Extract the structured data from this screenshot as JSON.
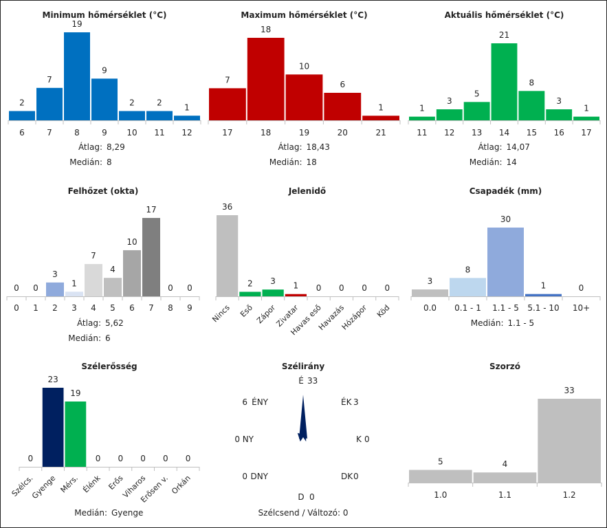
{
  "chart_data": [
    {
      "id": "min",
      "type": "bar",
      "title": "Minimum hőmérséklet (°C)",
      "categories": [
        "6",
        "7",
        "8",
        "9",
        "10",
        "11",
        "12"
      ],
      "values": [
        2,
        7,
        19,
        9,
        2,
        2,
        1
      ],
      "colors": [
        "#0070c0"
      ],
      "stats": [
        {
          "label": "Átlag:",
          "value": "8,29"
        },
        {
          "label": "Medián:",
          "value": "8"
        }
      ]
    },
    {
      "id": "max",
      "type": "bar",
      "title": "Maximum hőmérséklet (°C)",
      "categories": [
        "17",
        "18",
        "19",
        "20",
        "21"
      ],
      "values": [
        7,
        18,
        10,
        6,
        1
      ],
      "colors": [
        "#c00000"
      ],
      "stats": [
        {
          "label": "Átlag:",
          "value": "18,43"
        },
        {
          "label": "Medián:",
          "value": "18"
        }
      ]
    },
    {
      "id": "act",
      "type": "bar",
      "title": "Aktuális hőmérséklet (°C)",
      "categories": [
        "11",
        "12",
        "13",
        "14",
        "15",
        "16",
        "17"
      ],
      "values": [
        1,
        3,
        5,
        21,
        8,
        3,
        1
      ],
      "colors": [
        "#00b050"
      ],
      "stats": [
        {
          "label": "Átlag:",
          "value": "14,07"
        },
        {
          "label": "Medián:",
          "value": "14"
        }
      ]
    },
    {
      "id": "cloud",
      "type": "bar",
      "title": "Felhőzet (okta)",
      "categories": [
        "0",
        "1",
        "2",
        "3",
        "4",
        "5",
        "6",
        "7",
        "8",
        "9"
      ],
      "values": [
        0,
        0,
        3,
        1,
        7,
        4,
        10,
        17,
        0,
        0
      ],
      "colors": [
        "#9dc3e6",
        "#9dc3e6",
        "#8faadc",
        "#dae3f3",
        "#d9d9d9",
        "#bfbfbf",
        "#a6a6a6",
        "#7f7f7f",
        "#7f7f7f",
        "#7f7f7f"
      ],
      "stats": [
        {
          "label": "Átlag:",
          "value": "5,62"
        },
        {
          "label": "Medián:",
          "value": "6"
        }
      ]
    },
    {
      "id": "weather",
      "type": "bar",
      "title": "Jelenidő",
      "categories": [
        "Nincs",
        "Eső",
        "Zápor",
        "Zivatar",
        "Havas eső",
        "Havazás",
        "Hózápor",
        "Köd"
      ],
      "values": [
        36,
        2,
        3,
        1,
        0,
        0,
        0,
        0
      ],
      "colors": [
        "#bfbfbf",
        "#00b050",
        "#00b050",
        "#c00000",
        "#bfbfbf",
        "#bfbfbf",
        "#bfbfbf",
        "#bfbfbf"
      ],
      "rotated_labels": true,
      "stats": []
    },
    {
      "id": "precip",
      "type": "bar",
      "title": "Csapadék (mm)",
      "categories": [
        "0.0",
        "0.1 - 1",
        "1.1 - 5",
        "5.1 - 10",
        "10+"
      ],
      "values": [
        3,
        8,
        30,
        1,
        0
      ],
      "colors": [
        "#bfbfbf",
        "#bdd7ee",
        "#8faadc",
        "#4472c4",
        "#4472c4"
      ],
      "stats": [
        {
          "label": "Medián:",
          "value": "1.1 - 5"
        }
      ]
    },
    {
      "id": "wind",
      "type": "bar",
      "title": "Szélerősség",
      "categories": [
        "Szélcs.",
        "Gyenge",
        "Mérs.",
        "Élénk",
        "Erős",
        "Viharos",
        "Erősen v.",
        "Orkán"
      ],
      "values": [
        0,
        23,
        19,
        0,
        0,
        0,
        0,
        0
      ],
      "colors": [
        "#bfbfbf",
        "#002060",
        "#00b050",
        "#bfbfbf",
        "#bfbfbf",
        "#bfbfbf",
        "#bfbfbf",
        "#bfbfbf"
      ],
      "rotated_labels": true,
      "stats": [
        {
          "label": "Medián:",
          "value": "Gyenge"
        }
      ]
    },
    {
      "id": "dir",
      "type": "windrose",
      "title": "Szélirány",
      "directions": [
        {
          "label": "É",
          "value": 33
        },
        {
          "label": "ÉK",
          "value": 3
        },
        {
          "label": "K",
          "value": 0
        },
        {
          "label": "DK",
          "value": 0
        },
        {
          "label": "D",
          "value": 0
        },
        {
          "label": "DNY",
          "value": 0
        },
        {
          "label": "NY",
          "value": 0
        },
        {
          "label": "ÉNY",
          "value": 6
        }
      ],
      "color": "#002060",
      "footer": "Szélcsend / Változó: 0"
    },
    {
      "id": "mult",
      "type": "bar",
      "title": "Szorzó",
      "categories": [
        "1.0",
        "1.1",
        "1.2"
      ],
      "values": [
        5,
        4,
        33
      ],
      "colors": [
        "#bfbfbf"
      ],
      "stats": []
    }
  ]
}
